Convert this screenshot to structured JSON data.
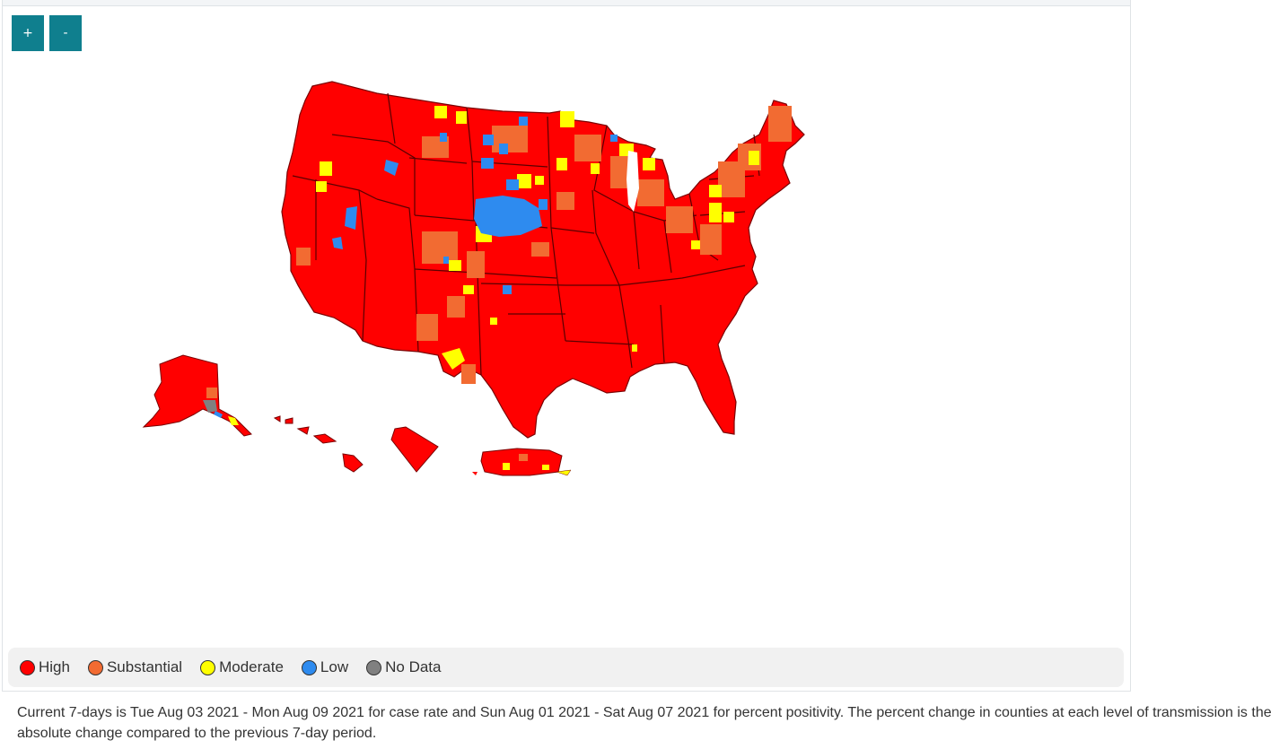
{
  "zoom": {
    "in_label": "+",
    "out_label": "-"
  },
  "colors": {
    "high": "#ff0000",
    "substantial": "#f26b32",
    "moderate": "#ffff00",
    "low": "#2e8bef",
    "no_data": "#808080",
    "border": "#6b0000"
  },
  "legend": [
    {
      "key": "high",
      "label": "High",
      "color": "#ff0000"
    },
    {
      "key": "substantial",
      "label": "Substantial",
      "color": "#f26b32"
    },
    {
      "key": "moderate",
      "label": "Moderate",
      "color": "#ffff00"
    },
    {
      "key": "low",
      "label": "Low",
      "color": "#2e8bef"
    },
    {
      "key": "no_data",
      "label": "No Data",
      "color": "#808080"
    }
  ],
  "footnote": "Current 7-days is Tue Aug 03 2021 - Mon Aug 09 2021 for case rate and Sun Aug 01 2021 - Sat Aug 07 2021 for percent positivity. The percent change in counties at each level of transmission is the absolute change compared to the previous 7-day period."
}
